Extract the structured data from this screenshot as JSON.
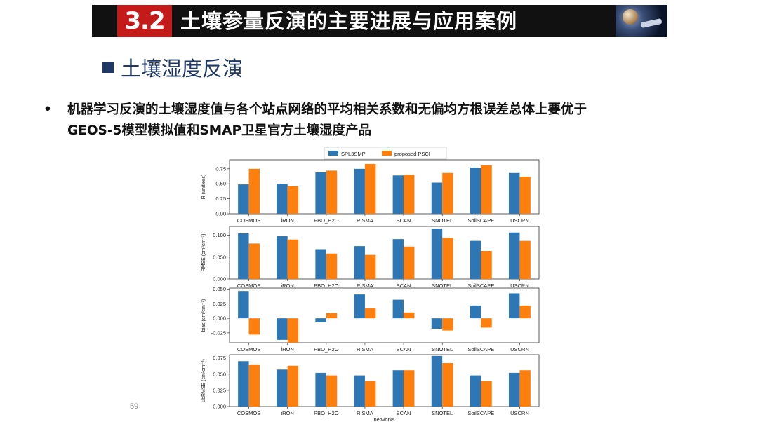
{
  "slide": {
    "section_number": "3.2",
    "title": "土壤参量反演的主要进展与应用案例",
    "subheading": "土壤湿度反演",
    "bullet_marker": "•",
    "bullet_lines": [
      "机器学习反演的土壤湿度值与各个站点网络的平均相关系数和无偏均方根误差总体上要优于",
      "GEOS-5模型模拟值和SMAP卫星官方土壤湿度产品"
    ],
    "page_number": "59"
  },
  "colors": {
    "series1": "#2e77b4",
    "series2": "#ff7f0e",
    "title_bar": "#111111",
    "title_num_bg": "#c41a1a",
    "subheading": "#1f3864"
  },
  "chart_data": {
    "type": "bar",
    "categories": [
      "COSMOS",
      "iRON",
      "PBO_H2O",
      "RISMA",
      "SCAN",
      "SNOTEL",
      "SoilSCAPE",
      "USCRN"
    ],
    "legend": [
      "SPL3SMP",
      "proposed PSCI"
    ],
    "legend_placement": "top-center",
    "xlabel": "networks",
    "panels": [
      {
        "ylabel": "R (unitless)",
        "ylim": [
          0,
          0.9
        ],
        "yticks": [
          0.0,
          0.25,
          0.5,
          0.75
        ],
        "tick_labels": [
          "0.00",
          "0.25",
          "0.50",
          "0.75"
        ],
        "series": [
          {
            "name": "SPL3SMP",
            "values": [
              0.49,
              0.5,
              0.69,
              0.75,
              0.64,
              0.52,
              0.77,
              0.68
            ]
          },
          {
            "name": "proposed PSCI",
            "values": [
              0.75,
              0.46,
              0.72,
              0.83,
              0.65,
              0.68,
              0.81,
              0.62
            ]
          }
        ]
      },
      {
        "ylabel": "RMSE (cm³cm⁻³)",
        "ylim": [
          0,
          0.12
        ],
        "yticks": [
          0.0,
          0.05,
          0.1
        ],
        "tick_labels": [
          "0.000",
          "0.050",
          "0.100"
        ],
        "series": [
          {
            "name": "SPL3SMP",
            "values": [
              0.104,
              0.098,
              0.068,
              0.075,
              0.091,
              0.115,
              0.087,
              0.106
            ]
          },
          {
            "name": "proposed PSCI",
            "values": [
              0.081,
              0.09,
              0.058,
              0.055,
              0.074,
              0.094,
              0.064,
              0.087
            ]
          }
        ]
      },
      {
        "ylabel": "bias (cm³cm⁻³)",
        "ylim": [
          -0.042,
          0.052
        ],
        "yticks": [
          -0.025,
          0.0,
          0.025,
          0.05
        ],
        "tick_labels": [
          "-0.025",
          "0.000",
          "0.025",
          "0.050"
        ],
        "series": [
          {
            "name": "SPL3SMP",
            "values": [
              0.047,
              -0.037,
              -0.007,
              0.041,
              0.032,
              -0.018,
              0.022,
              0.043
            ]
          },
          {
            "name": "proposed PSCI",
            "values": [
              -0.028,
              -0.042,
              0.009,
              0.017,
              0.01,
              -0.021,
              -0.016,
              0.022
            ]
          }
        ]
      },
      {
        "ylabel": "ubRMSE (cm³cm⁻³)",
        "ylim": [
          0,
          0.08
        ],
        "yticks": [
          0.0,
          0.025,
          0.05,
          0.075
        ],
        "tick_labels": [
          "0.000",
          "0.025",
          "0.050",
          "0.075"
        ],
        "series": [
          {
            "name": "SPL3SMP",
            "values": [
              0.07,
              0.057,
              0.052,
              0.048,
              0.056,
              0.078,
              0.048,
              0.052
            ]
          },
          {
            "name": "proposed PSCI",
            "values": [
              0.065,
              0.063,
              0.048,
              0.039,
              0.056,
              0.067,
              0.039,
              0.056
            ]
          }
        ]
      }
    ]
  }
}
